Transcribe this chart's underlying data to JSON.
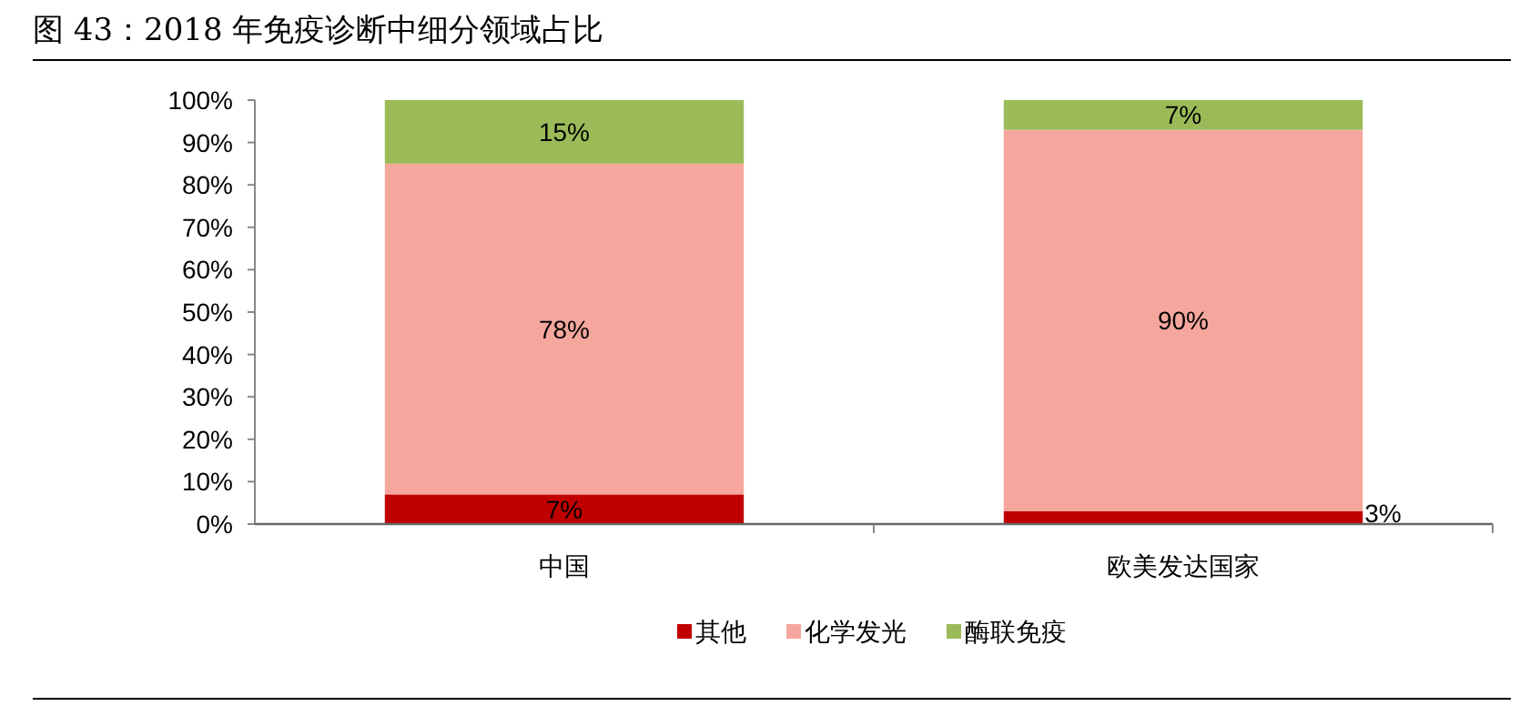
{
  "chart_data": {
    "type": "bar",
    "title": "图 43：2018 年免疫诊断中细分领域占比",
    "stacked": true,
    "categories": [
      "中国",
      "欧美发达国家"
    ],
    "series": [
      {
        "name": "其他",
        "color": "#c00000",
        "values": [
          7,
          3
        ],
        "value_labels": [
          "7%",
          "3%"
        ]
      },
      {
        "name": "化学发光",
        "color": "#f6a79d",
        "values": [
          78,
          90
        ],
        "value_labels": [
          "78%",
          "90%"
        ]
      },
      {
        "name": "酶联免疫",
        "color": "#9bbb59",
        "values": [
          15,
          7
        ],
        "value_labels": [
          "15%",
          "7%"
        ]
      }
    ],
    "ylim": [
      0,
      100
    ],
    "yticks": [
      {
        "value": 0,
        "label": "0%"
      },
      {
        "value": 10,
        "label": "10%"
      },
      {
        "value": 20,
        "label": "20%"
      },
      {
        "value": 30,
        "label": "30%"
      },
      {
        "value": 40,
        "label": "40%"
      },
      {
        "value": 50,
        "label": "50%"
      },
      {
        "value": 60,
        "label": "60%"
      },
      {
        "value": 70,
        "label": "70%"
      },
      {
        "value": 80,
        "label": "80%"
      },
      {
        "value": 90,
        "label": "90%"
      },
      {
        "value": 100,
        "label": "100%"
      }
    ],
    "grid": false,
    "legend": "bottom"
  }
}
